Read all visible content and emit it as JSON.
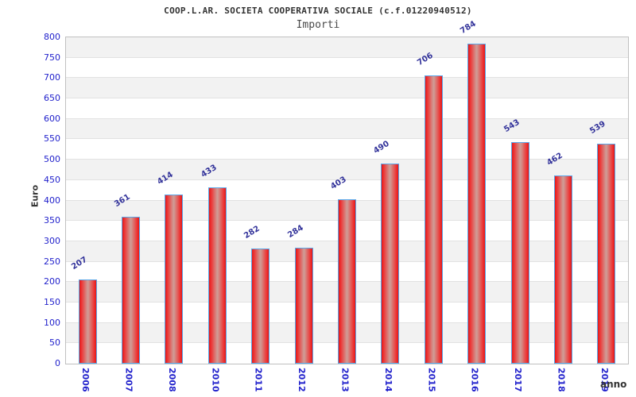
{
  "chart_data": {
    "type": "bar",
    "title": "COOP.L.AR. SOCIETA COOPERATIVA SOCIALE (c.f.01220940512)",
    "subtitle": "Importi",
    "xlabel": "anno",
    "ylabel": "Euro",
    "categories": [
      "2006",
      "2007",
      "2008",
      "2010",
      "2011",
      "2012",
      "2013",
      "2014",
      "2015",
      "2016",
      "2017",
      "2018",
      "2019"
    ],
    "values": [
      207,
      361,
      414,
      433,
      282,
      284,
      403,
      490,
      706,
      784,
      543,
      462,
      539
    ],
    "ylim": [
      0,
      800
    ],
    "ytick_step": 50,
    "grid": true,
    "legend": "none",
    "band_colors": [
      "#ffffff",
      "#f2f2f2"
    ],
    "colors": {
      "bar_edge_red": "#e01818",
      "bar_mid_red": "#ee3333",
      "bar_center": "#d09a94",
      "bar_border_blue": "#5aa6e8",
      "axis_tick_blue": "#2222cc",
      "value_label_navy": "#32329a",
      "title_gray": "#333333",
      "subtitle_gray": "#4a4a4a",
      "axis_title_dark": "#333333",
      "gridline": "#e2e2e2",
      "plot_border": "#c0c0c0"
    }
  }
}
